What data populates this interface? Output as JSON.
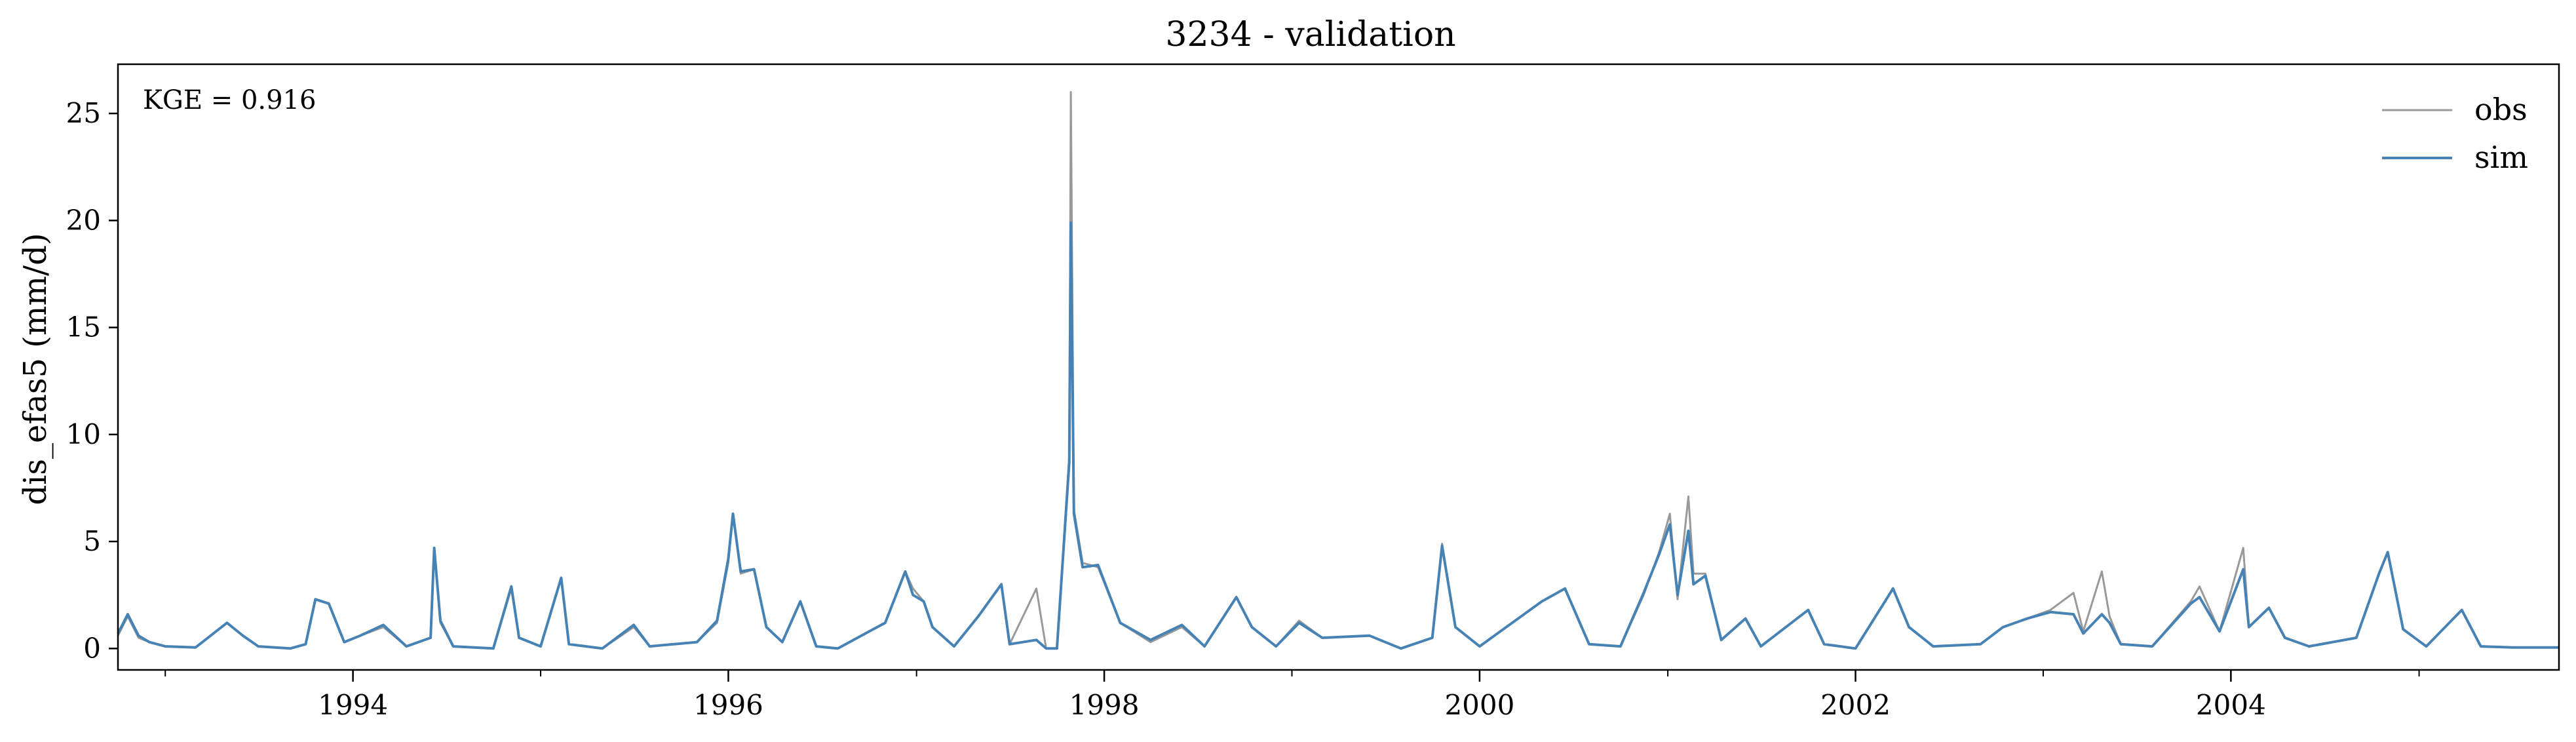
{
  "chart_data": {
    "type": "line",
    "title": "3234 - validation",
    "xlabel": "",
    "ylabel": "dis_efas5 (mm/d)",
    "annotation": "KGE = 0.916",
    "xlim": [
      "1992-10-01",
      "2005-09-30"
    ],
    "ylim": [
      -1.0,
      27.3
    ],
    "x_ticks": [
      "1994",
      "1996",
      "1998",
      "2000",
      "2002",
      "2004"
    ],
    "x_tick_dates": [
      "1994-01-01",
      "1996-01-01",
      "1998-01-01",
      "2000-01-01",
      "2002-01-01",
      "2004-01-01"
    ],
    "y_ticks": [
      0,
      5,
      10,
      15,
      20,
      25
    ],
    "grid": false,
    "legend_position": "top-right",
    "series": [
      {
        "name": "obs",
        "color": "#999999",
        "points": [
          [
            "1992-10-01",
            0.6
          ],
          [
            "1992-10-20",
            1.5
          ],
          [
            "1992-11-10",
            0.5
          ],
          [
            "1992-12-01",
            0.3
          ],
          [
            "1993-01-01",
            0.1
          ],
          [
            "1993-03-01",
            0.05
          ],
          [
            "1993-05-01",
            1.2
          ],
          [
            "1993-06-01",
            0.6
          ],
          [
            "1993-07-01",
            0.1
          ],
          [
            "1993-09-01",
            0.0
          ],
          [
            "1993-10-01",
            0.2
          ],
          [
            "1993-10-20",
            2.3
          ],
          [
            "1993-11-15",
            2.1
          ],
          [
            "1993-12-15",
            0.3
          ],
          [
            "1994-01-15",
            0.6
          ],
          [
            "1994-03-01",
            1.0
          ],
          [
            "1994-04-15",
            0.1
          ],
          [
            "1994-06-01",
            0.5
          ],
          [
            "1994-06-08",
            4.7
          ],
          [
            "1994-06-20",
            1.2
          ],
          [
            "1994-07-15",
            0.1
          ],
          [
            "1994-10-01",
            0.0
          ],
          [
            "1994-11-05",
            2.8
          ],
          [
            "1994-11-20",
            0.5
          ],
          [
            "1995-01-01",
            0.1
          ],
          [
            "1995-02-10",
            3.3
          ],
          [
            "1995-02-25",
            0.2
          ],
          [
            "1995-05-01",
            0.0
          ],
          [
            "1995-07-01",
            1.0
          ],
          [
            "1995-08-01",
            0.1
          ],
          [
            "1995-11-01",
            0.3
          ],
          [
            "1995-12-10",
            1.2
          ],
          [
            "1996-01-01",
            4.0
          ],
          [
            "1996-01-10",
            6.3
          ],
          [
            "1996-01-25",
            3.5
          ],
          [
            "1996-02-20",
            3.7
          ],
          [
            "1996-03-15",
            1.0
          ],
          [
            "1996-04-15",
            0.3
          ],
          [
            "1996-05-20",
            2.2
          ],
          [
            "1996-06-20",
            0.1
          ],
          [
            "1996-08-01",
            0.0
          ],
          [
            "1996-10-01",
            0.8
          ],
          [
            "1996-11-01",
            1.2
          ],
          [
            "1996-12-10",
            3.6
          ],
          [
            "1996-12-25",
            2.8
          ],
          [
            "1997-01-15",
            2.2
          ],
          [
            "1997-02-01",
            1.0
          ],
          [
            "1997-03-15",
            0.1
          ],
          [
            "1997-05-01",
            1.5
          ],
          [
            "1997-06-15",
            3.0
          ],
          [
            "1997-07-01",
            0.2
          ],
          [
            "1997-08-22",
            2.8
          ],
          [
            "1997-09-10",
            0.0
          ],
          [
            "1997-10-01",
            0.0
          ],
          [
            "1997-10-25",
            9.0
          ],
          [
            "1997-10-28",
            26.0
          ],
          [
            "1997-11-03",
            6.5
          ],
          [
            "1997-11-20",
            4.0
          ],
          [
            "1997-12-20",
            3.8
          ],
          [
            "1998-02-01",
            1.2
          ],
          [
            "1998-04-01",
            0.3
          ],
          [
            "1998-06-01",
            1.0
          ],
          [
            "1998-07-15",
            0.1
          ],
          [
            "1998-09-15",
            2.4
          ],
          [
            "1998-10-15",
            1.0
          ],
          [
            "1998-12-01",
            0.1
          ],
          [
            "1999-01-15",
            1.3
          ],
          [
            "1999-03-01",
            0.5
          ],
          [
            "1999-06-01",
            0.6
          ],
          [
            "1999-08-01",
            0.0
          ],
          [
            "1999-10-01",
            0.5
          ],
          [
            "1999-10-20",
            4.9
          ],
          [
            "1999-11-15",
            1.0
          ],
          [
            "2000-01-01",
            0.1
          ],
          [
            "2000-05-01",
            2.2
          ],
          [
            "2000-06-15",
            2.8
          ],
          [
            "2000-08-01",
            0.2
          ],
          [
            "2000-10-01",
            0.1
          ],
          [
            "2000-11-15",
            2.5
          ],
          [
            "2000-12-15",
            4.5
          ],
          [
            "2001-01-05",
            6.3
          ],
          [
            "2001-01-20",
            2.3
          ],
          [
            "2001-02-10",
            7.1
          ],
          [
            "2001-02-20",
            3.5
          ],
          [
            "2001-03-15",
            3.5
          ],
          [
            "2001-04-15",
            0.4
          ],
          [
            "2001-06-01",
            1.4
          ],
          [
            "2001-07-01",
            0.1
          ],
          [
            "2001-10-01",
            1.8
          ],
          [
            "2001-11-01",
            0.2
          ],
          [
            "2002-01-01",
            0.0
          ],
          [
            "2002-03-15",
            2.8
          ],
          [
            "2002-04-15",
            1.0
          ],
          [
            "2002-06-01",
            0.1
          ],
          [
            "2002-09-01",
            0.2
          ],
          [
            "2002-10-15",
            1.0
          ],
          [
            "2002-12-01",
            1.4
          ],
          [
            "2003-01-15",
            1.8
          ],
          [
            "2003-03-01",
            2.6
          ],
          [
            "2003-03-20",
            0.8
          ],
          [
            "2003-04-25",
            3.6
          ],
          [
            "2003-05-10",
            1.5
          ],
          [
            "2003-06-01",
            0.2
          ],
          [
            "2003-08-01",
            0.1
          ],
          [
            "2003-10-15",
            2.2
          ],
          [
            "2003-11-01",
            2.9
          ],
          [
            "2003-12-10",
            0.8
          ],
          [
            "2004-01-25",
            4.7
          ],
          [
            "2004-02-05",
            1.0
          ],
          [
            "2004-03-15",
            1.9
          ],
          [
            "2004-04-15",
            0.5
          ],
          [
            "2004-06-01",
            0.1
          ],
          [
            "2004-09-01",
            0.5
          ],
          [
            "2004-10-15",
            3.5
          ],
          [
            "2004-11-01",
            4.5
          ],
          [
            "2004-12-01",
            0.9
          ],
          [
            "2005-01-15",
            0.1
          ],
          [
            "2005-03-25",
            1.8
          ],
          [
            "2005-05-01",
            0.1
          ],
          [
            "2005-07-01",
            0.05
          ],
          [
            "2005-09-30",
            0.05
          ]
        ]
      },
      {
        "name": "sim",
        "color": "#4682b4",
        "points": [
          [
            "1992-10-01",
            0.7
          ],
          [
            "1992-10-20",
            1.6
          ],
          [
            "1992-11-10",
            0.6
          ],
          [
            "1992-12-01",
            0.3
          ],
          [
            "1993-01-01",
            0.1
          ],
          [
            "1993-03-01",
            0.05
          ],
          [
            "1993-05-01",
            1.2
          ],
          [
            "1993-06-01",
            0.6
          ],
          [
            "1993-07-01",
            0.1
          ],
          [
            "1993-09-01",
            0.0
          ],
          [
            "1993-10-01",
            0.2
          ],
          [
            "1993-10-20",
            2.3
          ],
          [
            "1993-11-15",
            2.1
          ],
          [
            "1993-12-15",
            0.3
          ],
          [
            "1994-01-15",
            0.6
          ],
          [
            "1994-03-01",
            1.1
          ],
          [
            "1994-04-15",
            0.1
          ],
          [
            "1994-06-01",
            0.5
          ],
          [
            "1994-06-08",
            4.7
          ],
          [
            "1994-06-20",
            1.3
          ],
          [
            "1994-07-15",
            0.1
          ],
          [
            "1994-10-01",
            0.0
          ],
          [
            "1994-11-05",
            2.9
          ],
          [
            "1994-11-20",
            0.5
          ],
          [
            "1995-01-01",
            0.1
          ],
          [
            "1995-02-10",
            3.3
          ],
          [
            "1995-02-25",
            0.2
          ],
          [
            "1995-05-01",
            0.0
          ],
          [
            "1995-07-01",
            1.1
          ],
          [
            "1995-08-01",
            0.1
          ],
          [
            "1995-11-01",
            0.3
          ],
          [
            "1995-12-10",
            1.3
          ],
          [
            "1996-01-01",
            4.2
          ],
          [
            "1996-01-10",
            6.3
          ],
          [
            "1996-01-25",
            3.6
          ],
          [
            "1996-02-20",
            3.7
          ],
          [
            "1996-03-15",
            1.0
          ],
          [
            "1996-04-15",
            0.3
          ],
          [
            "1996-05-20",
            2.2
          ],
          [
            "1996-06-20",
            0.1
          ],
          [
            "1996-08-01",
            0.0
          ],
          [
            "1996-10-01",
            0.8
          ],
          [
            "1996-11-01",
            1.2
          ],
          [
            "1996-12-10",
            3.6
          ],
          [
            "1996-12-25",
            2.5
          ],
          [
            "1997-01-15",
            2.2
          ],
          [
            "1997-02-01",
            1.0
          ],
          [
            "1997-03-15",
            0.1
          ],
          [
            "1997-05-01",
            1.5
          ],
          [
            "1997-06-15",
            3.0
          ],
          [
            "1997-07-01",
            0.2
          ],
          [
            "1997-08-22",
            0.4
          ],
          [
            "1997-09-10",
            0.0
          ],
          [
            "1997-10-01",
            0.0
          ],
          [
            "1997-10-25",
            8.7
          ],
          [
            "1997-10-28",
            19.9
          ],
          [
            "1997-11-03",
            6.3
          ],
          [
            "1997-11-20",
            3.8
          ],
          [
            "1997-12-20",
            3.9
          ],
          [
            "1998-02-01",
            1.2
          ],
          [
            "1998-04-01",
            0.4
          ],
          [
            "1998-06-01",
            1.1
          ],
          [
            "1998-07-15",
            0.1
          ],
          [
            "1998-09-15",
            2.4
          ],
          [
            "1998-10-15",
            1.0
          ],
          [
            "1998-12-01",
            0.1
          ],
          [
            "1999-01-15",
            1.2
          ],
          [
            "1999-03-01",
            0.5
          ],
          [
            "1999-06-01",
            0.6
          ],
          [
            "1999-08-01",
            0.0
          ],
          [
            "1999-10-01",
            0.5
          ],
          [
            "1999-10-20",
            4.8
          ],
          [
            "1999-11-15",
            1.0
          ],
          [
            "2000-01-01",
            0.1
          ],
          [
            "2000-05-01",
            2.2
          ],
          [
            "2000-06-15",
            2.8
          ],
          [
            "2000-08-01",
            0.2
          ],
          [
            "2000-10-01",
            0.1
          ],
          [
            "2000-11-15",
            2.6
          ],
          [
            "2000-12-15",
            4.4
          ],
          [
            "2001-01-05",
            5.8
          ],
          [
            "2001-01-20",
            2.5
          ],
          [
            "2001-02-10",
            5.5
          ],
          [
            "2001-02-20",
            3.0
          ],
          [
            "2001-03-15",
            3.4
          ],
          [
            "2001-04-15",
            0.4
          ],
          [
            "2001-06-01",
            1.4
          ],
          [
            "2001-07-01",
            0.1
          ],
          [
            "2001-10-01",
            1.8
          ],
          [
            "2001-11-01",
            0.2
          ],
          [
            "2002-01-01",
            0.0
          ],
          [
            "2002-03-15",
            2.8
          ],
          [
            "2002-04-15",
            1.0
          ],
          [
            "2002-06-01",
            0.1
          ],
          [
            "2002-09-01",
            0.2
          ],
          [
            "2002-10-15",
            1.0
          ],
          [
            "2002-12-01",
            1.4
          ],
          [
            "2003-01-15",
            1.7
          ],
          [
            "2003-03-01",
            1.6
          ],
          [
            "2003-03-20",
            0.7
          ],
          [
            "2003-04-25",
            1.6
          ],
          [
            "2003-05-10",
            1.2
          ],
          [
            "2003-06-01",
            0.2
          ],
          [
            "2003-08-01",
            0.1
          ],
          [
            "2003-10-15",
            2.1
          ],
          [
            "2003-11-01",
            2.4
          ],
          [
            "2003-12-10",
            0.8
          ],
          [
            "2004-01-25",
            3.7
          ],
          [
            "2004-02-05",
            1.0
          ],
          [
            "2004-03-15",
            1.9
          ],
          [
            "2004-04-15",
            0.5
          ],
          [
            "2004-06-01",
            0.1
          ],
          [
            "2004-09-01",
            0.5
          ],
          [
            "2004-10-15",
            3.5
          ],
          [
            "2004-11-01",
            4.5
          ],
          [
            "2004-12-01",
            0.9
          ],
          [
            "2005-01-15",
            0.1
          ],
          [
            "2005-03-25",
            1.8
          ],
          [
            "2005-05-01",
            0.1
          ],
          [
            "2005-07-01",
            0.05
          ],
          [
            "2005-09-30",
            0.05
          ]
        ]
      }
    ]
  }
}
